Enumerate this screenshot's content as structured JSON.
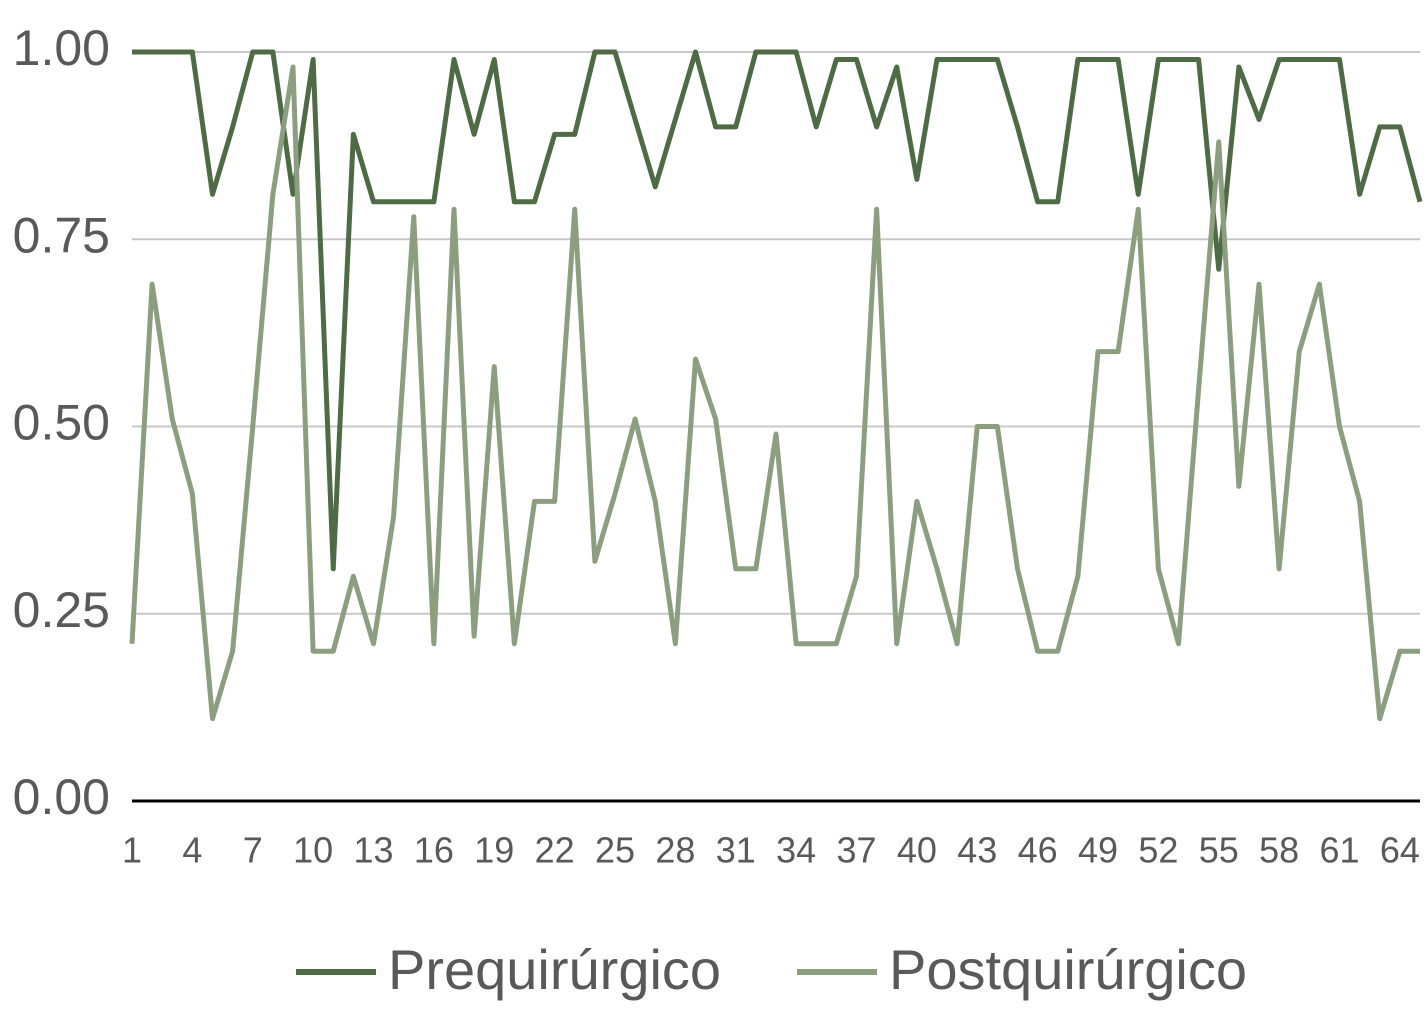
{
  "chart_data": {
    "type": "line",
    "categories": [
      "1",
      null,
      null,
      "4",
      null,
      null,
      "7",
      null,
      null,
      "10",
      null,
      null,
      "13",
      null,
      null,
      "16",
      null,
      null,
      "19",
      null,
      null,
      "22",
      null,
      null,
      "25",
      null,
      null,
      "28",
      null,
      null,
      "31",
      null,
      null,
      "34",
      null,
      null,
      "37",
      null,
      null,
      "40",
      null,
      null,
      "43",
      null,
      null,
      "46",
      null,
      null,
      "49",
      null,
      null,
      "52",
      null,
      null,
      "55",
      null,
      null,
      "58",
      null,
      null,
      "61",
      null,
      null,
      "64",
      null
    ],
    "series": [
      {
        "name": "Prequirúrgico",
        "color": "#4e6b45",
        "values": [
          1.0,
          1.0,
          1.0,
          1.0,
          0.81,
          0.9,
          1.0,
          1.0,
          0.81,
          0.99,
          0.31,
          0.89,
          0.8,
          0.8,
          0.8,
          0.8,
          0.99,
          0.89,
          0.99,
          0.8,
          0.8,
          0.89,
          0.89,
          1.0,
          1.0,
          0.91,
          0.82,
          0.91,
          1.0,
          0.9,
          0.9,
          1.0,
          1.0,
          1.0,
          0.9,
          0.99,
          0.99,
          0.9,
          0.98,
          0.83,
          0.99,
          0.99,
          0.99,
          0.99,
          0.9,
          0.8,
          0.8,
          0.99,
          0.99,
          0.99,
          0.81,
          0.99,
          0.99,
          0.99,
          0.71,
          0.98,
          0.91,
          0.99,
          0.99,
          0.99,
          0.99,
          0.81,
          0.9,
          0.9,
          0.8
        ]
      },
      {
        "name": "Postquirúrgico",
        "color": "#8c9e80",
        "values": [
          0.21,
          0.69,
          0.51,
          0.41,
          0.11,
          0.2,
          0.5,
          0.81,
          0.98,
          0.2,
          0.2,
          0.3,
          0.21,
          0.38,
          0.78,
          0.21,
          0.79,
          0.22,
          0.58,
          0.21,
          0.4,
          0.4,
          0.79,
          0.32,
          0.41,
          0.51,
          0.4,
          0.21,
          0.59,
          0.51,
          0.31,
          0.31,
          0.49,
          0.21,
          0.21,
          0.21,
          0.3,
          0.79,
          0.21,
          0.4,
          0.31,
          0.21,
          0.5,
          0.5,
          0.31,
          0.2,
          0.2,
          0.3,
          0.6,
          0.6,
          0.79,
          0.31,
          0.21,
          0.55,
          0.88,
          0.42,
          0.69,
          0.31,
          0.6,
          0.69,
          0.5,
          0.4,
          0.11,
          0.2,
          0.2
        ]
      }
    ],
    "ylim": [
      0,
      1
    ],
    "yticks": [
      {
        "value": 0,
        "label": "0.00"
      },
      {
        "value": 0.25,
        "label": "0.25"
      },
      {
        "value": 0.5,
        "label": "0.50"
      },
      {
        "value": 0.75,
        "label": "0.75"
      },
      {
        "value": 1,
        "label": "1.00"
      }
    ],
    "grid": true,
    "legend": "bottom"
  }
}
